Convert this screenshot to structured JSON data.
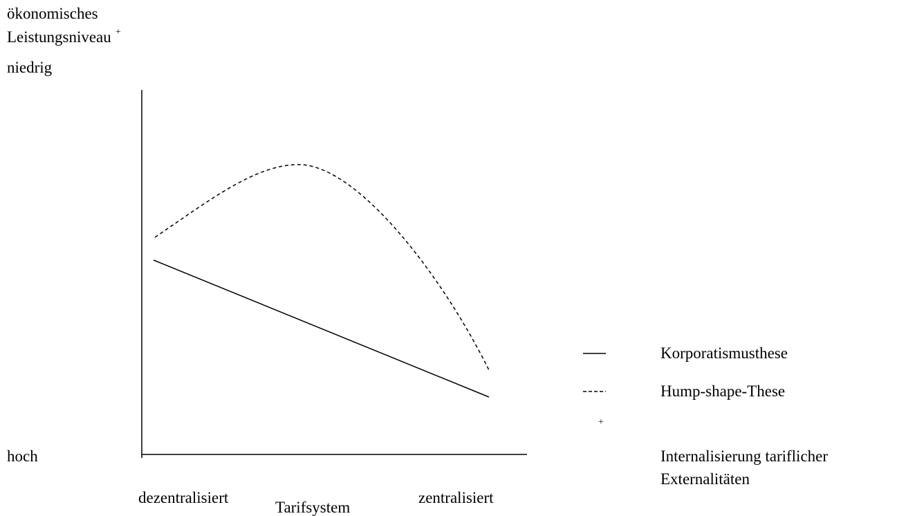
{
  "y_axis": {
    "label_lines": [
      "ökonomisches",
      "Leistungsniveau"
    ],
    "label_marker": "+",
    "top": "niedrig",
    "bottom": "hoch"
  },
  "x_axis": {
    "left": "dezentralisiert",
    "right": "zentralisiert",
    "label": "Tarifsystem"
  },
  "legend": [
    {
      "label": "Korporatismusthese"
    },
    {
      "label": "Hump-shape-These"
    },
    {
      "marker": "+",
      "label_lines": [
        "Internalisierung tariflicher",
        "Externalitäten"
      ]
    }
  ]
}
